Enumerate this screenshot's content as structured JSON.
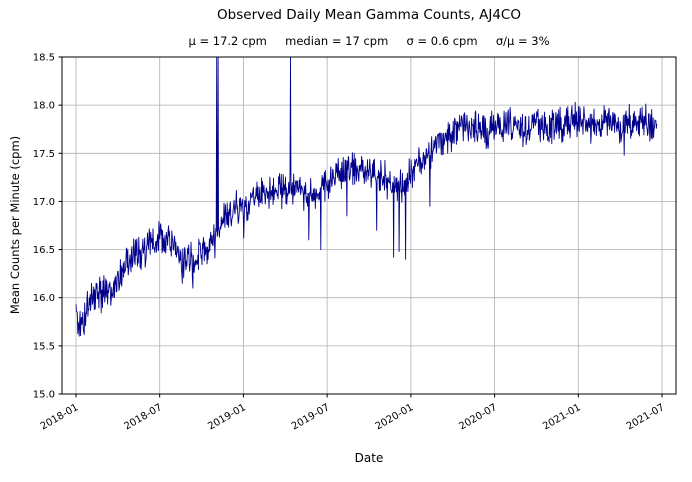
{
  "title": "Observed Daily Mean Gamma Counts, AJ4CO",
  "subtitle": "μ = 17.2 cpm     median = 17 cpm     σ = 0.6 cpm     σ/μ = 3%",
  "chart_data": {
    "type": "line",
    "title": "Observed Daily Mean Gamma Counts, AJ4CO",
    "stats": {
      "mu_cpm": 17.2,
      "median_cpm": 17,
      "sigma_cpm": 0.6,
      "sigma_over_mu": "3%"
    },
    "xlabel": "Date",
    "ylabel": "Mean Counts per Minute (cpm)",
    "series_name": "Daily mean gamma counts",
    "ylim": [
      15.0,
      18.5
    ],
    "yticks": [
      15.0,
      15.5,
      16.0,
      16.5,
      17.0,
      17.5,
      18.0,
      18.5
    ],
    "xticks": [
      "2018-01",
      "2018-07",
      "2019-01",
      "2019-07",
      "2020-01",
      "2020-07",
      "2021-01",
      "2021-07"
    ],
    "x_start": "2018-01-01",
    "x_end": "2021-06-20",
    "grid": true,
    "grid_color": "#b0b0b0",
    "line_color": "#00008b",
    "noise_sd_cpm": 0.09,
    "trend_points": [
      [
        "2018-01-01",
        15.88
      ],
      [
        "2018-01-10",
        15.72
      ],
      [
        "2018-01-20",
        15.8
      ],
      [
        "2018-02-01",
        15.95
      ],
      [
        "2018-02-15",
        16.02
      ],
      [
        "2018-03-01",
        16.05
      ],
      [
        "2018-03-15",
        16.02
      ],
      [
        "2018-04-01",
        16.18
      ],
      [
        "2018-04-15",
        16.3
      ],
      [
        "2018-05-01",
        16.4
      ],
      [
        "2018-05-15",
        16.45
      ],
      [
        "2018-06-01",
        16.5
      ],
      [
        "2018-06-15",
        16.58
      ],
      [
        "2018-07-01",
        16.65
      ],
      [
        "2018-07-15",
        16.6
      ],
      [
        "2018-08-01",
        16.55
      ],
      [
        "2018-08-18",
        16.35
      ],
      [
        "2018-09-01",
        16.45
      ],
      [
        "2018-09-15",
        16.38
      ],
      [
        "2018-10-01",
        16.45
      ],
      [
        "2018-10-15",
        16.5
      ],
      [
        "2018-11-01",
        16.62
      ],
      [
        "2018-11-15",
        16.8
      ],
      [
        "2018-12-01",
        16.9
      ],
      [
        "2018-12-15",
        16.95
      ],
      [
        "2019-01-01",
        16.9
      ],
      [
        "2019-01-15",
        17.0
      ],
      [
        "2019-02-01",
        17.05
      ],
      [
        "2019-03-01",
        17.08
      ],
      [
        "2019-04-01",
        17.1
      ],
      [
        "2019-05-01",
        17.15
      ],
      [
        "2019-05-20",
        17.05
      ],
      [
        "2019-06-10",
        17.1
      ],
      [
        "2019-07-01",
        17.2
      ],
      [
        "2019-08-01",
        17.3
      ],
      [
        "2019-09-01",
        17.35
      ],
      [
        "2019-10-01",
        17.3
      ],
      [
        "2019-11-01",
        17.25
      ],
      [
        "2019-11-25",
        17.15
      ],
      [
        "2019-12-15",
        17.15
      ],
      [
        "2020-01-01",
        17.3
      ],
      [
        "2020-02-01",
        17.45
      ],
      [
        "2020-03-01",
        17.6
      ],
      [
        "2020-04-01",
        17.72
      ],
      [
        "2020-05-01",
        17.8
      ],
      [
        "2020-06-01",
        17.75
      ],
      [
        "2020-07-01",
        17.75
      ],
      [
        "2020-08-01",
        17.8
      ],
      [
        "2020-09-01",
        17.75
      ],
      [
        "2020-10-01",
        17.8
      ],
      [
        "2020-11-01",
        17.75
      ],
      [
        "2020-12-01",
        17.8
      ],
      [
        "2021-01-01",
        17.85
      ],
      [
        "2021-02-01",
        17.8
      ],
      [
        "2021-03-01",
        17.85
      ],
      [
        "2021-04-01",
        17.78
      ],
      [
        "2021-05-01",
        17.85
      ],
      [
        "2021-06-01",
        17.8
      ],
      [
        "2021-06-20",
        17.8
      ]
    ],
    "spikes": [
      [
        "2018-01-08",
        15.6
      ],
      [
        "2018-08-20",
        16.15
      ],
      [
        "2018-09-12",
        16.1
      ],
      [
        "2018-11-04",
        18.6
      ],
      [
        "2018-11-07",
        18.6
      ],
      [
        "2019-01-02",
        16.62
      ],
      [
        "2019-04-12",
        18.6
      ],
      [
        "2019-05-22",
        16.6
      ],
      [
        "2019-06-18",
        16.5
      ],
      [
        "2019-08-14",
        16.85
      ],
      [
        "2019-10-18",
        16.7
      ],
      [
        "2019-11-24",
        16.42
      ],
      [
        "2019-12-06",
        16.48
      ],
      [
        "2019-12-20",
        16.4
      ],
      [
        "2020-02-12",
        16.95
      ],
      [
        "2021-04-10",
        17.48
      ]
    ]
  }
}
